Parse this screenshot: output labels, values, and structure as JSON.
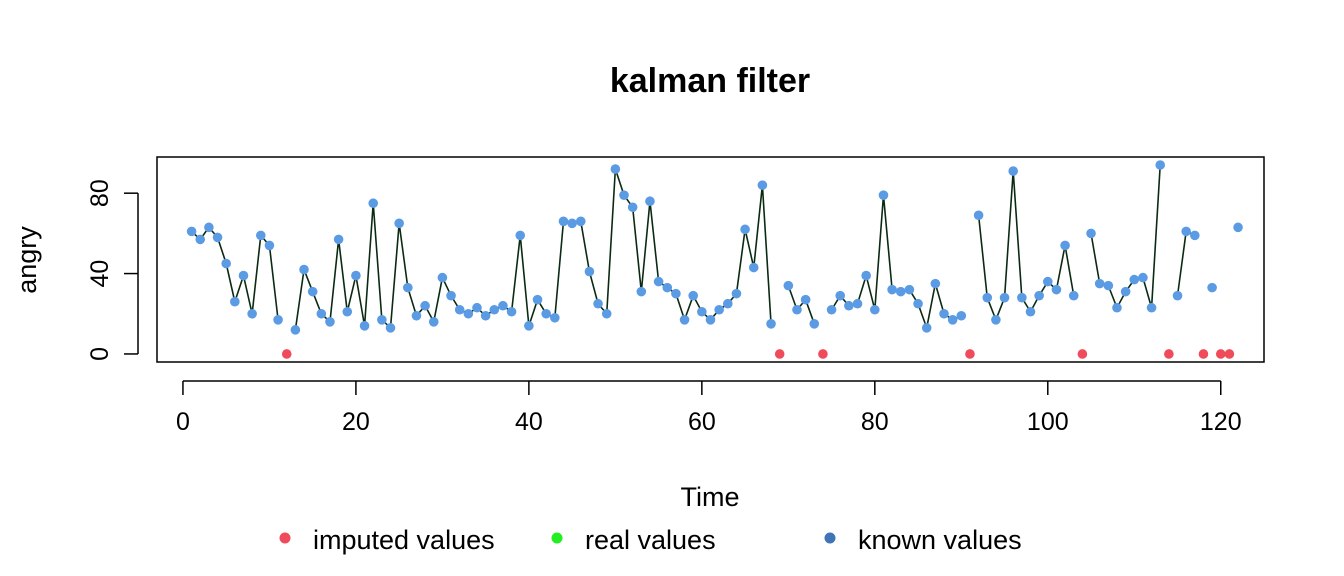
{
  "chart_data": {
    "type": "line",
    "title": "kalman filter",
    "xlabel": "Time",
    "ylabel": "angry",
    "xlim": [
      -3,
      125
    ],
    "ylim": [
      -4,
      98
    ],
    "x_ticks": [
      0,
      20,
      40,
      60,
      80,
      100,
      120
    ],
    "x_tick_labels": [
      "0",
      "20",
      "40",
      "60",
      "80",
      "100",
      "120"
    ],
    "y_ticks": [
      0,
      40,
      80
    ],
    "y_tick_labels": [
      "0",
      "40",
      "80"
    ],
    "grid": false,
    "legend_position": "bottom",
    "colors": {
      "line": "#0b2a12",
      "imputed": "#ef4b5a",
      "real": "#22ee22",
      "known": "#3f74b6",
      "known_marker": "#5b9be4"
    },
    "legend": [
      {
        "label": "imputed values",
        "color": "#ef4b5a"
      },
      {
        "label": "real values",
        "color": "#22ee22"
      },
      {
        "label": "known values",
        "color": "#3f74b6"
      }
    ],
    "series": [
      {
        "name": "known values",
        "points": [
          [
            1,
            61
          ],
          [
            2,
            57
          ],
          [
            3,
            63
          ],
          [
            4,
            58
          ],
          [
            5,
            45
          ],
          [
            6,
            26
          ],
          [
            7,
            39
          ],
          [
            8,
            20
          ],
          [
            9,
            59
          ],
          [
            10,
            54
          ],
          [
            11,
            17
          ],
          [
            13,
            12
          ],
          [
            14,
            42
          ],
          [
            15,
            31
          ],
          [
            16,
            20
          ],
          [
            17,
            16
          ],
          [
            18,
            57
          ],
          [
            19,
            21
          ],
          [
            20,
            39
          ],
          [
            21,
            14
          ],
          [
            22,
            75
          ],
          [
            23,
            17
          ],
          [
            24,
            13
          ],
          [
            25,
            65
          ],
          [
            26,
            33
          ],
          [
            27,
            19
          ],
          [
            28,
            24
          ],
          [
            29,
            16
          ],
          [
            30,
            38
          ],
          [
            31,
            29
          ],
          [
            32,
            22
          ],
          [
            33,
            20
          ],
          [
            34,
            23
          ],
          [
            35,
            19
          ],
          [
            36,
            22
          ],
          [
            37,
            24
          ],
          [
            38,
            21
          ],
          [
            39,
            59
          ],
          [
            40,
            14
          ],
          [
            41,
            27
          ],
          [
            42,
            20
          ],
          [
            43,
            18
          ],
          [
            44,
            66
          ],
          [
            45,
            65
          ],
          [
            46,
            66
          ],
          [
            47,
            41
          ],
          [
            48,
            25
          ],
          [
            49,
            20
          ],
          [
            50,
            92
          ],
          [
            51,
            79
          ],
          [
            52,
            73
          ],
          [
            53,
            31
          ],
          [
            54,
            76
          ],
          [
            55,
            36
          ],
          [
            56,
            33
          ],
          [
            57,
            30
          ],
          [
            58,
            17
          ],
          [
            59,
            29
          ],
          [
            60,
            21
          ],
          [
            61,
            17
          ],
          [
            62,
            22
          ],
          [
            63,
            25
          ],
          [
            64,
            30
          ],
          [
            65,
            62
          ],
          [
            66,
            43
          ],
          [
            67,
            84
          ],
          [
            68,
            15
          ],
          [
            70,
            34
          ],
          [
            71,
            22
          ],
          [
            72,
            27
          ],
          [
            73,
            15
          ],
          [
            75,
            22
          ],
          [
            76,
            29
          ],
          [
            77,
            24
          ],
          [
            78,
            25
          ],
          [
            79,
            39
          ],
          [
            80,
            22
          ],
          [
            81,
            79
          ],
          [
            82,
            32
          ],
          [
            83,
            31
          ],
          [
            84,
            32
          ],
          [
            85,
            25
          ],
          [
            86,
            13
          ],
          [
            87,
            35
          ],
          [
            88,
            20
          ],
          [
            89,
            17
          ],
          [
            90,
            19
          ],
          [
            92,
            69
          ],
          [
            93,
            28
          ],
          [
            94,
            17
          ],
          [
            95,
            28
          ],
          [
            96,
            91
          ],
          [
            97,
            28
          ],
          [
            98,
            21
          ],
          [
            99,
            29
          ],
          [
            100,
            36
          ],
          [
            101,
            32
          ],
          [
            102,
            54
          ],
          [
            103,
            29
          ],
          [
            105,
            60
          ],
          [
            106,
            35
          ],
          [
            107,
            34
          ],
          [
            108,
            23
          ],
          [
            109,
            31
          ],
          [
            110,
            37
          ],
          [
            111,
            38
          ],
          [
            112,
            23
          ],
          [
            113,
            94
          ],
          [
            115,
            29
          ],
          [
            116,
            61
          ],
          [
            117,
            59
          ],
          [
            119,
            33
          ],
          [
            122,
            63
          ]
        ]
      },
      {
        "name": "imputed values",
        "points": [
          [
            12,
            0
          ],
          [
            69,
            0
          ],
          [
            74,
            0
          ],
          [
            91,
            0
          ],
          [
            104,
            0
          ],
          [
            114,
            0
          ],
          [
            118,
            0
          ],
          [
            120,
            0
          ],
          [
            121,
            0
          ]
        ]
      }
    ]
  }
}
